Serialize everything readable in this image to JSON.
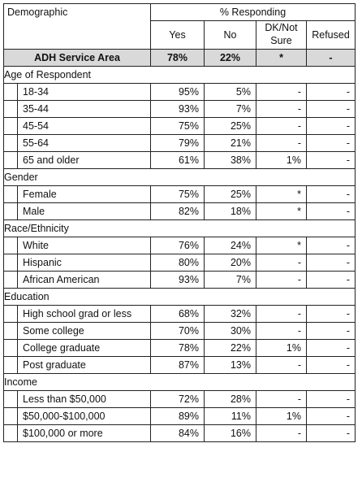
{
  "header": {
    "demographic_label": "Demographic",
    "responding_label": "% Responding",
    "columns": [
      "Yes",
      "No",
      "DK/Not\nSure",
      "Refused"
    ]
  },
  "service_area": {
    "label": "ADH Service Area",
    "yes": "78%",
    "no": "22%",
    "dk": "*",
    "refused": "-"
  },
  "sections": [
    {
      "title": "Age of Respondent",
      "rows": [
        {
          "label": "18-34",
          "yes": "95%",
          "no": "5%",
          "dk": "-",
          "refused": "-"
        },
        {
          "label": "35-44",
          "yes": "93%",
          "no": "7%",
          "dk": "-",
          "refused": "-"
        },
        {
          "label": "45-54",
          "yes": "75%",
          "no": "25%",
          "dk": "-",
          "refused": "-"
        },
        {
          "label": "55-64",
          "yes": "79%",
          "no": "21%",
          "dk": "-",
          "refused": "-"
        },
        {
          "label": "65 and older",
          "yes": "61%",
          "no": "38%",
          "dk": "1%",
          "refused": "-"
        }
      ]
    },
    {
      "title": "Gender",
      "rows": [
        {
          "label": "Female",
          "yes": "75%",
          "no": "25%",
          "dk": "*",
          "refused": "-"
        },
        {
          "label": "Male",
          "yes": "82%",
          "no": "18%",
          "dk": "*",
          "refused": "-"
        }
      ]
    },
    {
      "title": "Race/Ethnicity",
      "rows": [
        {
          "label": "White",
          "yes": "76%",
          "no": "24%",
          "dk": "*",
          "refused": "-"
        },
        {
          "label": "Hispanic",
          "yes": "80%",
          "no": "20%",
          "dk": "-",
          "refused": "-"
        },
        {
          "label": "African American",
          "yes": "93%",
          "no": "7%",
          "dk": "-",
          "refused": "-"
        }
      ]
    },
    {
      "title": "Education",
      "rows": [
        {
          "label": "High school grad or less",
          "yes": "68%",
          "no": "32%",
          "dk": "-",
          "refused": "-"
        },
        {
          "label": "Some college",
          "yes": "70%",
          "no": "30%",
          "dk": "-",
          "refused": "-"
        },
        {
          "label": "College graduate",
          "yes": "78%",
          "no": "22%",
          "dk": "1%",
          "refused": "-"
        },
        {
          "label": "Post graduate",
          "yes": "87%",
          "no": "13%",
          "dk": "-",
          "refused": "-"
        }
      ]
    },
    {
      "title": "Income",
      "rows": [
        {
          "label": "Less than $50,000",
          "yes": "72%",
          "no": "28%",
          "dk": "-",
          "refused": "-"
        },
        {
          "label": "$50,000-$100,000",
          "yes": "89%",
          "no": "11%",
          "dk": "1%",
          "refused": "-"
        },
        {
          "label": "$100,000 or more",
          "yes": "84%",
          "no": "16%",
          "dk": "-",
          "refused": "-"
        }
      ]
    }
  ]
}
